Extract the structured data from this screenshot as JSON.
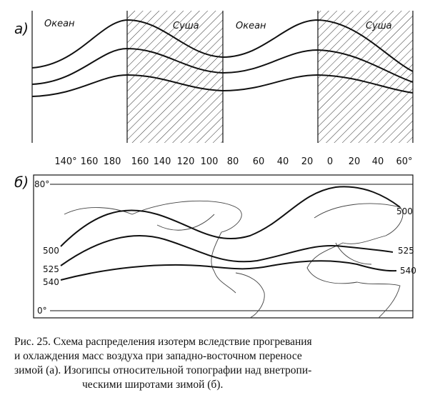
{
  "panel_a": {
    "label": "а)",
    "regions": [
      "Океан",
      "Суша",
      "Океан",
      "Суша"
    ]
  },
  "panel_b": {
    "label": "б)",
    "longitudes": [
      "140°",
      "160",
      "180",
      "160",
      "140",
      "120",
      "100",
      "80",
      "60",
      "40",
      "20",
      "0",
      "20",
      "40",
      "60°"
    ],
    "latitudes": [
      "80°",
      "0°"
    ],
    "isoline_labels_left": [
      "500",
      "525",
      "540"
    ],
    "isoline_labels_right": [
      "500",
      "525",
      "540"
    ]
  },
  "caption": [
    "Рис. 25. Схема распределения изотерм вследствие прогревания",
    "и охлаждения масс воздуха при западно-восточном переносе",
    "зимой (а). Изогипсы относительной топографии над внетропи-",
    "ческими широтами зимой (б)."
  ]
}
